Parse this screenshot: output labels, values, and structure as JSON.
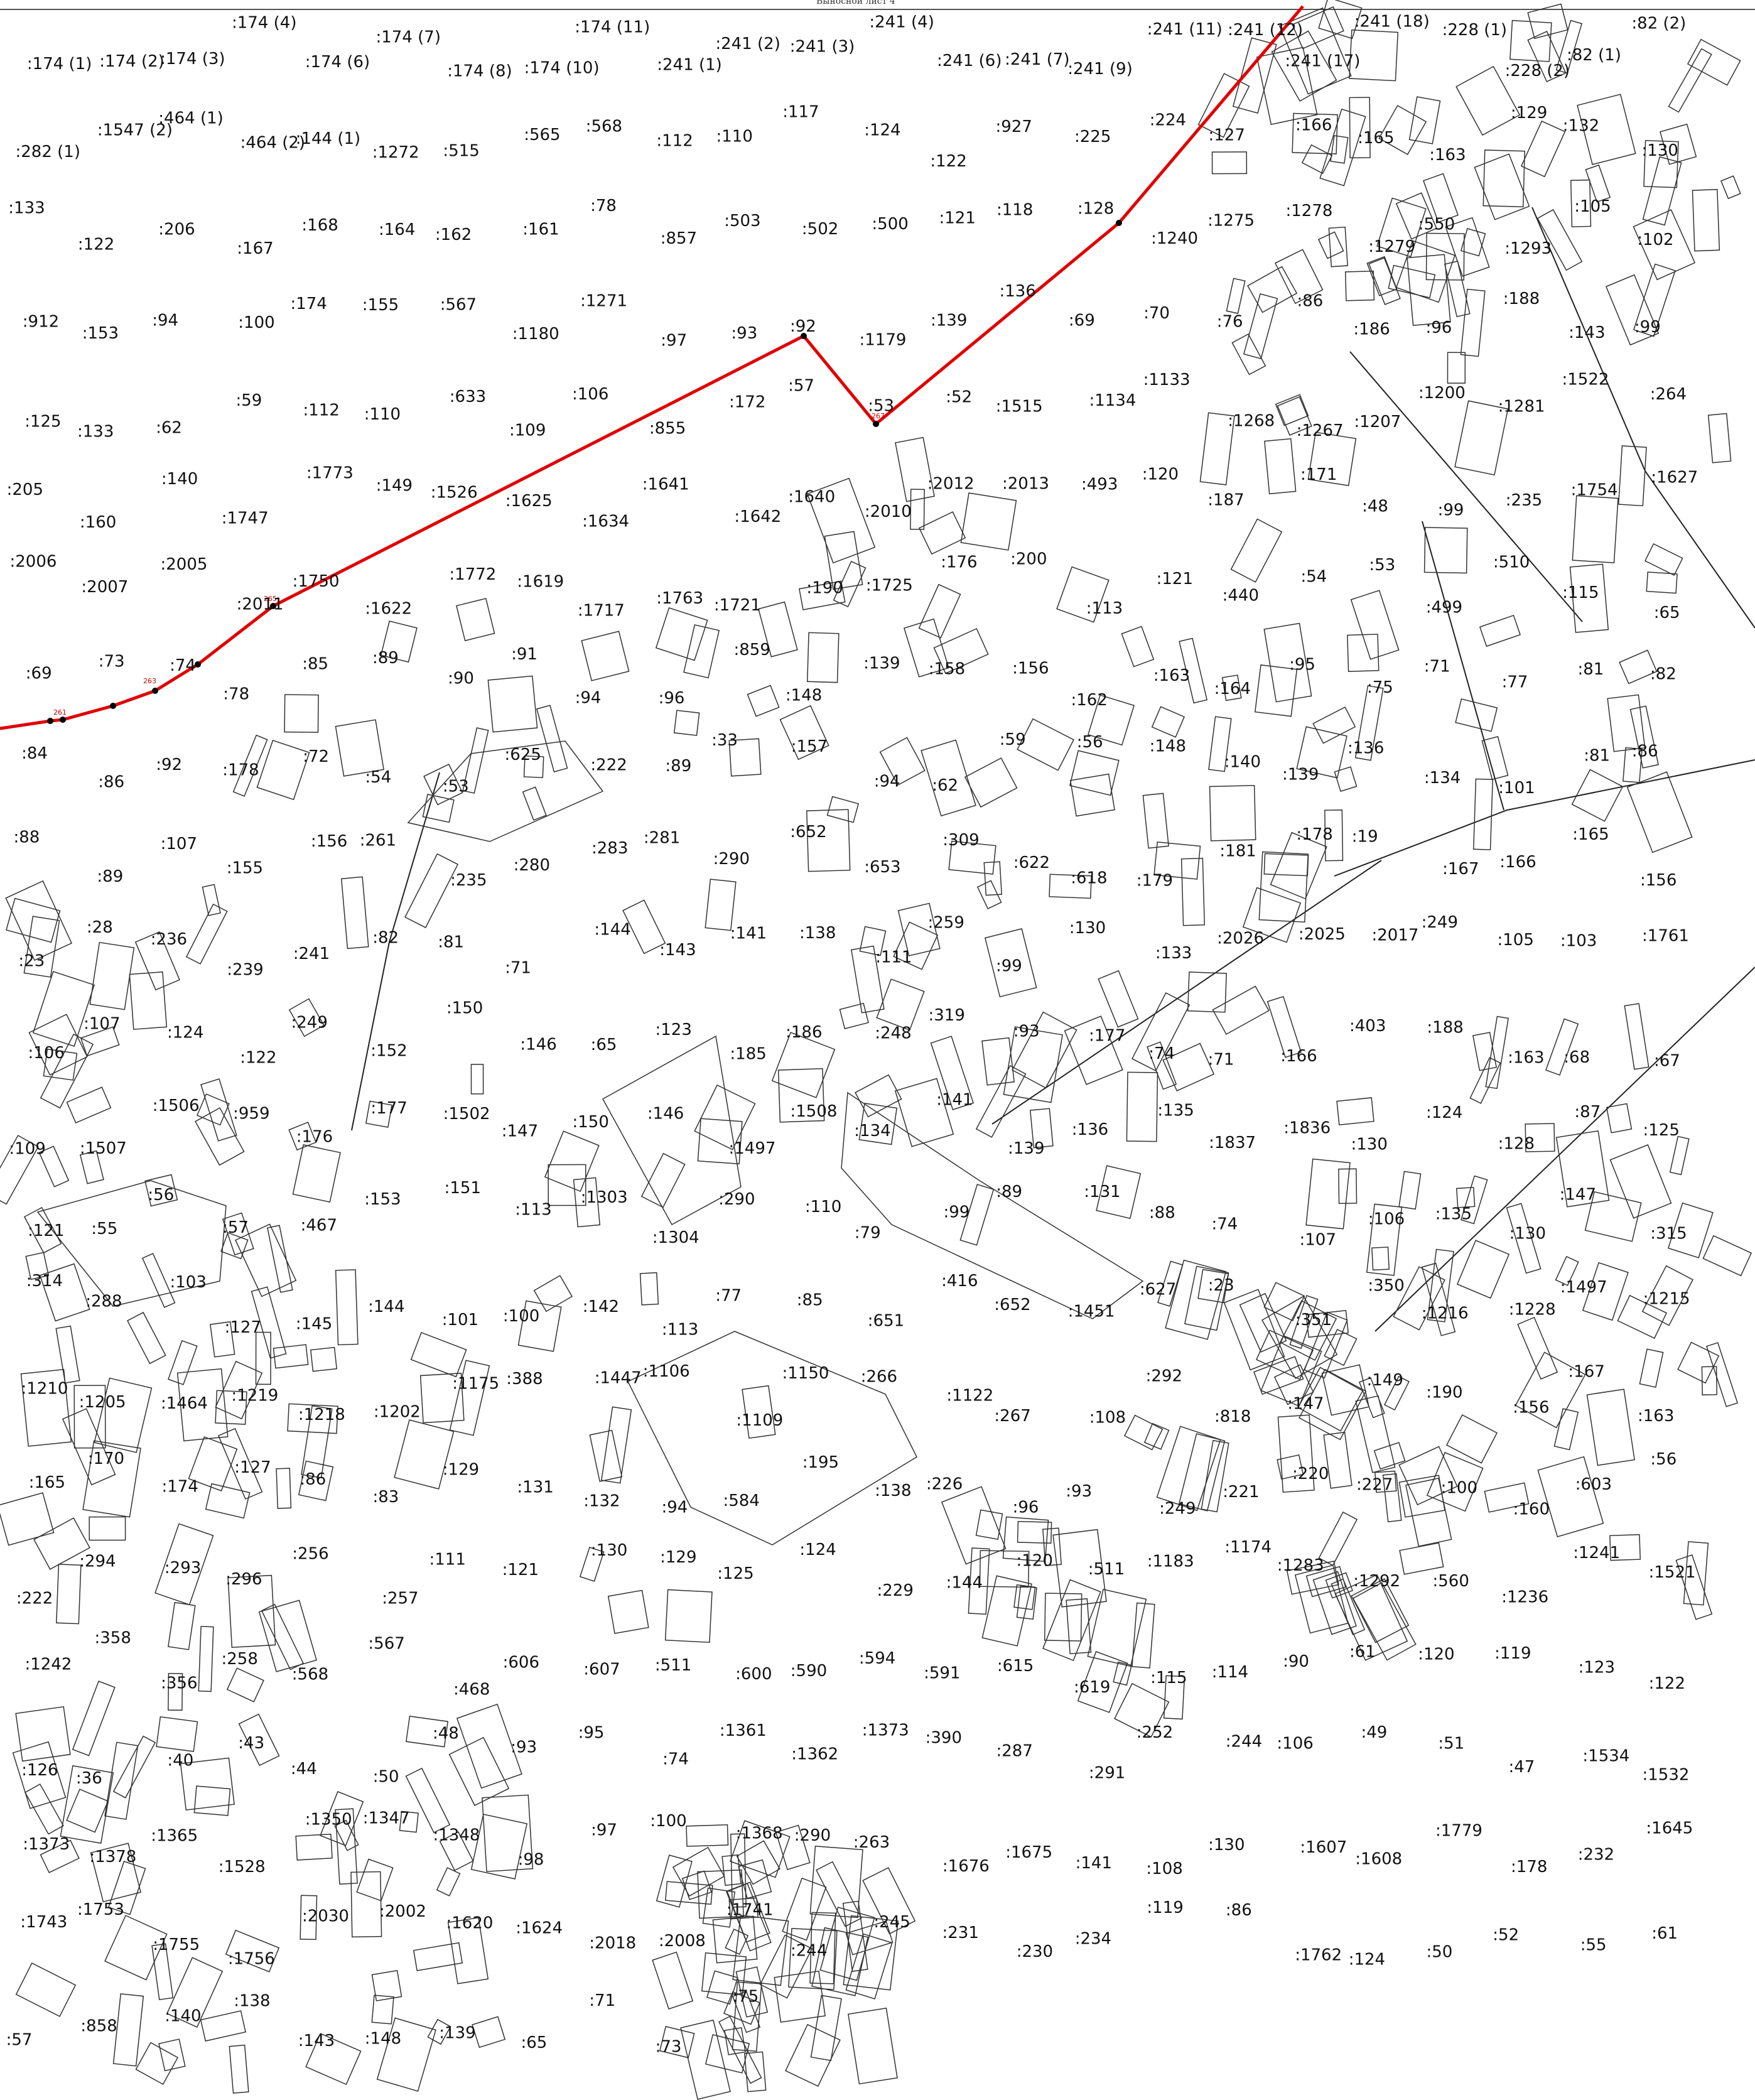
{
  "map": {
    "sheet_title": "Выносной лист 4",
    "colors": {
      "boundary": "#e00000",
      "parcel_outline": "#333333",
      "road_line": "#222222",
      "label_text": "#111111"
    },
    "boundary_point_labels": [
      "261",
      "263",
      "265",
      "267"
    ],
    "parcel_labels": [
      ":174 (1)",
      ":174 (2)",
      ":174 (3)",
      ":174 (4)",
      ":174 (6)",
      ":174 (7)",
      ":174 (8)",
      ":174 (10)",
      ":174 (11)",
      ":241 (1)",
      ":241 (2)",
      ":241 (3)",
      ":241 (4)",
      ":241 (6)",
      ":241 (7)",
      ":241 (9)",
      ":241 (11)",
      ":241 (12)",
      ":241 (17)",
      ":241 (18)",
      ":228 (1)",
      ":228 (2)",
      ":82 (1)",
      ":82 (2)",
      ":282 (1)",
      ":1547 (2)",
      ":464 (1)",
      ":464 (2)",
      ":144 (1)",
      ":1272",
      ":515",
      ":565",
      ":568",
      ":112",
      ":110",
      ":117",
      ":124",
      ":122",
      ":927",
      ":225",
      ":224",
      ":127",
      ":166",
      ":165",
      ":163",
      ":129",
      ":132",
      ":130",
      ":133",
      ":122",
      ":206",
      ":167",
      ":168",
      ":164",
      ":162",
      ":161",
      ":78",
      ":857",
      ":503",
      ":502",
      ":500",
      ":121",
      ":118",
      ":128",
      ":1240",
      ":1275",
      ":1278",
      ":1279",
      ":550",
      ":1293",
      ":105",
      ":102",
      ":912",
      ":153",
      ":94",
      ":100",
      ":174",
      ":155",
      ":567",
      ":1180",
      ":1271",
      ":97",
      ":93",
      ":92",
      ":1179",
      ":139",
      ":136",
      ":69",
      ":70",
      ":76",
      ":86",
      ":186",
      ":96",
      ":188",
      ":143",
      ":99",
      ":125",
      ":133",
      ":62",
      ":59",
      ":112",
      ":110",
      ":633",
      ":109",
      ":106",
      ":855",
      ":172",
      ":57",
      ":53",
      ":52",
      ":1515",
      ":1134",
      ":1133",
      ":1268",
      ":1267",
      ":1207",
      ":1200",
      ":1281",
      ":1522",
      ":264",
      ":205",
      ":160",
      ":140",
      ":1747",
      ":1773",
      ":149",
      ":1526",
      ":1625",
      ":1634",
      ":1641",
      ":1642",
      ":1640",
      ":2010",
      ":2012",
      ":2013",
      ":493",
      ":120",
      ":187",
      ":171",
      ":48",
      ":99",
      ":235",
      ":1754",
      ":1627",
      ":2006",
      ":2007",
      ":2005",
      ":2011",
      ":1750",
      ":1622",
      ":1772",
      ":1619",
      ":1717",
      ":1763",
      ":1721",
      ":190",
      ":1725",
      ":176",
      ":200",
      ":113",
      ":121",
      ":440",
      ":54",
      ":53",
      ":499",
      ":510",
      ":115",
      ":65",
      ":69",
      ":73",
      ":74",
      ":78",
      ":85",
      ":89",
      ":90",
      ":91",
      ":94",
      ":96",
      ":859",
      ":148",
      ":139",
      ":158",
      ":156",
      ":162",
      ":163",
      ":164",
      ":95",
      ":75",
      ":71",
      ":77",
      ":81",
      ":82",
      ":84",
      ":86",
      ":92",
      ":178",
      ":72",
      ":54",
      ":53",
      ":625",
      ":222",
      ":89",
      ":33",
      ":157",
      ":94",
      ":62",
      ":59",
      ":56",
      ":148",
      ":140",
      ":139",
      ":136",
      ":134",
      ":101",
      ":81",
      ":86",
      ":88",
      ":89",
      ":107",
      ":155",
      ":156",
      ":261",
      ":235",
      ":280",
      ":283",
      ":281",
      ":290",
      ":652",
      ":653",
      ":309",
      ":622",
      ":618",
      ":179",
      ":181",
      ":178",
      ":19",
      ":167",
      ":166",
      ":165",
      ":156",
      ":23",
      ":28",
      ":236",
      ":239",
      ":241",
      ":82",
      ":81",
      ":71",
      ":144",
      ":143",
      ":141",
      ":138",
      ":111",
      ":259",
      ":99",
      ":130",
      ":133",
      ":2026",
      ":2025",
      ":2017",
      ":249",
      ":105",
      ":103",
      ":1761",
      ":106",
      ":107",
      ":124",
      ":122",
      ":249",
      ":152",
      ":150",
      ":146",
      ":65",
      ":123",
      ":185",
      ":186",
      ":248",
      ":319",
      ":93",
      ":177",
      ":74",
      ":71",
      ":166",
      ":403",
      ":188",
      ":163",
      ":68",
      ":67",
      ":109",
      ":1507",
      ":1506",
      ":959",
      ":176",
      ":177",
      ":1502",
      ":147",
      ":150",
      ":146",
      ":1497",
      ":1508",
      ":134",
      ":141",
      ":139",
      ":136",
      ":135",
      ":1837",
      ":1836",
      ":130",
      ":124",
      ":128",
      ":87",
      ":125",
      ":121",
      ":55",
      ":56",
      ":57",
      ":467",
      ":153",
      ":151",
      ":113",
      ":1303",
      ":1304",
      ":290",
      ":110",
      ":79",
      ":99",
      ":89",
      ":131",
      ":88",
      ":74",
      ":107",
      ":106",
      ":135",
      ":130",
      ":147",
      ":315",
      ":314",
      ":288",
      ":103",
      ":127",
      ":145",
      ":144",
      ":101",
      ":100",
      ":142",
      ":113",
      ":77",
      ":85",
      ":651",
      ":416",
      ":652",
      ":1451",
      ":627",
      ":23",
      ":351",
      ":350",
      ":1216",
      ":1228",
      ":1497",
      ":1215",
      ":1210",
      ":1205",
      ":1464",
      ":1219",
      ":1218",
      ":1202",
      ":1175",
      ":388",
      ":1447",
      ":1106",
      ":1109",
      ":1150",
      ":266",
      ":1122",
      ":267",
      ":108",
      ":292",
      ":818",
      ":147",
      ":149",
      ":190",
      ":156",
      ":167",
      ":163",
      ":165",
      ":170",
      ":174",
      ":127",
      ":86",
      ":83",
      ":129",
      ":131",
      ":132",
      ":94",
      ":584",
      ":195",
      ":138",
      ":226",
      ":96",
      ":93",
      ":249",
      ":221",
      ":220",
      ":227",
      ":100",
      ":160",
      ":603",
      ":56",
      ":222",
      ":294",
      ":293",
      ":296",
      ":256",
      ":257",
      ":111",
      ":121",
      ":130",
      ":129",
      ":125",
      ":124",
      ":229",
      ":144",
      ":120",
      ":511",
      ":1183",
      ":1174",
      ":1283",
      ":1292",
      ":560",
      ":1236",
      ":1241",
      ":1521",
      ":1242",
      ":358",
      ":356",
      ":258",
      ":568",
      ":567",
      ":468",
      ":606",
      ":607",
      ":511",
      ":600",
      ":590",
      ":594",
      ":591",
      ":615",
      ":619",
      ":115",
      ":114",
      ":90",
      ":61",
      ":120",
      ":119",
      ":123",
      ":122",
      ":126",
      ":36",
      ":40",
      ":43",
      ":44",
      ":50",
      ":48",
      ":93",
      ":95",
      ":74",
      ":1361",
      ":1362",
      ":1373",
      ":390",
      ":287",
      ":291",
      ":252",
      ":244",
      ":106",
      ":49",
      ":51",
      ":47",
      ":1534",
      ":1532",
      ":1373",
      ":1378",
      ":1365",
      ":1528",
      ":1350",
      ":1347",
      ":1348",
      ":98",
      ":97",
      ":100",
      ":1368",
      ":290",
      ":263",
      ":1676",
      ":1675",
      ":141",
      ":108",
      ":130",
      ":1607",
      ":1608",
      ":1779",
      ":178",
      ":232",
      ":1645",
      ":1743",
      ":1753",
      ":1755",
      ":1756",
      ":2030",
      ":2002",
      ":1620",
      ":1624",
      ":2018",
      ":2008",
      ":1741",
      ":244",
      ":245",
      ":231",
      ":230",
      ":234",
      ":119",
      ":86",
      ":1762",
      ":124",
      ":50",
      ":52",
      ":55",
      ":61",
      ":57",
      ":858",
      ":140",
      ":138",
      ":143",
      ":148",
      ":139",
      ":65",
      ":71",
      ":73",
      ":75"
    ]
  }
}
